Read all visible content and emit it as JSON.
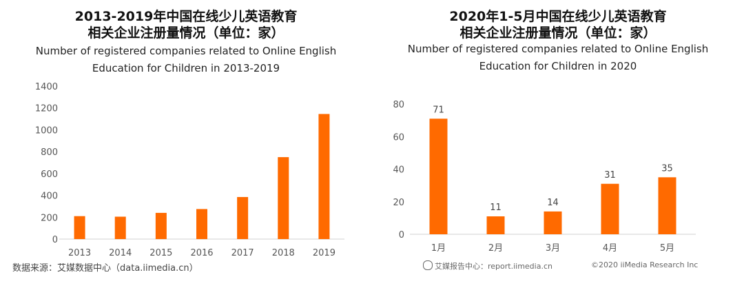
{
  "left": {
    "title_cn_line1": "2013-2019年中国在线少儿英语教育",
    "title_cn_line2": "相关企业注册量情况（单位：家）",
    "title_en_line1": "Number of registered companies related to Online English",
    "title_en_line2": "Education for Children in 2013-2019"
  },
  "right": {
    "title_cn_line1": "2020年1-5月中国在线少儿英语教育",
    "title_cn_line2": "相关企业注册量情况（单位：家）",
    "title_en_line1": "Number of registered companies related to Online English",
    "title_en_line2": "Education for Children in 2020"
  },
  "footer": {
    "source": "数据来源：艾媒数据中心（data.iimedia.cn）",
    "site": "艾媒报告中心：report.iimedia.cn",
    "copyright": "©2020  iiMedia Research  Inc"
  },
  "colors": {
    "bar": "#FF6A00",
    "axis": "#D0D0D0"
  },
  "chart_data": [
    {
      "type": "bar",
      "title": "2013-2019年中国在线少儿英语教育相关企业注册量情况（单位：家）",
      "subtitle": "Number of registered companies related to Online English Education for Children in 2013-2019",
      "categories": [
        "2013",
        "2014",
        "2015",
        "2016",
        "2017",
        "2018",
        "2019"
      ],
      "values": [
        210,
        205,
        240,
        275,
        385,
        750,
        1145
      ],
      "yticks": [
        0,
        200,
        400,
        600,
        800,
        1000,
        1200,
        1400
      ],
      "ylim": [
        0,
        1400
      ],
      "data_labels": false,
      "grid": false,
      "xlabel": "",
      "ylabel": ""
    },
    {
      "type": "bar",
      "title": "2020年1-5月中国在线少儿英语教育相关企业注册量情况（单位：家）",
      "subtitle": "Number of registered companies related to Online English Education for Children in 2020",
      "categories": [
        "1月",
        "2月",
        "3月",
        "4月",
        "5月"
      ],
      "values": [
        71,
        11,
        14,
        31,
        35
      ],
      "yticks": [
        0,
        20,
        40,
        60,
        80
      ],
      "ylim": [
        0,
        80
      ],
      "data_labels": true,
      "grid": false,
      "xlabel": "",
      "ylabel": ""
    }
  ]
}
